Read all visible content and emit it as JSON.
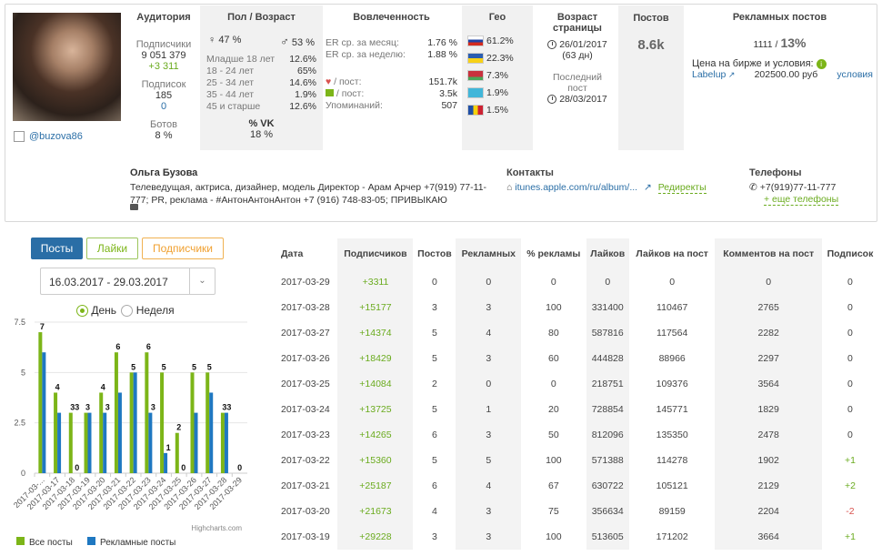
{
  "profile": {
    "handle": "@buzova86",
    "name": "Ольга Бузова",
    "bio": "Телеведущая, актриса, дизайнер, модель Директор - Арам Арчер +7(919) 77-11-777; PR, реклама - #АнтонАнтонАнтон +7 (916) 748-83-05; ПРИВЫКАЮ"
  },
  "audience": {
    "title": "Аудитория",
    "subs_label": "Подписчики",
    "subs_value": "9 051 379",
    "subs_delta": "+3 311",
    "following_label": "Подписок",
    "following_value": "185",
    "following_extra": "0",
    "bots_label": "Ботов",
    "bots_value": "8 %"
  },
  "gender_age": {
    "title": "Пол / Возраст",
    "female": "47 %",
    "male": "53 %",
    "rows": [
      {
        "label": "Младше 18 лет",
        "value": "12.6%"
      },
      {
        "label": "18 - 24 лет",
        "value": "65%"
      },
      {
        "label": "25 - 34 лет",
        "value": "14.6%"
      },
      {
        "label": "35 - 44 лет",
        "value": "1.9%"
      },
      {
        "label": "45 и старше",
        "value": "12.6%"
      }
    ],
    "vk_label": "% VK",
    "vk_value": "18 %"
  },
  "engagement": {
    "title": "Вовлеченность",
    "er_month_label": "ER ср. за месяц:",
    "er_month": "1.76 %",
    "er_week_label": "ER ср. за неделю:",
    "er_week": "1.88 %",
    "likes_label": "/ пост:",
    "likes": "151.7k",
    "comments_label": "/ пост:",
    "comments": "3.5k",
    "mentions_label": "Упоминаний:",
    "mentions": "507"
  },
  "geo": {
    "title": "Гео",
    "rows": [
      {
        "flag": "russia",
        "value": "61.2%"
      },
      {
        "flag": "ukraine",
        "value": "22.3%"
      },
      {
        "flag": "belarus",
        "value": "7.3%"
      },
      {
        "flag": "kazakhstan",
        "value": "1.9%"
      },
      {
        "flag": "moldova",
        "value": "1.5%"
      }
    ]
  },
  "page_age": {
    "title": "Возраст страницы",
    "created": "26/01/2017",
    "created_days": "(63 дн)",
    "last_post_label": "Последний пост",
    "last_post": "28/03/2017"
  },
  "posts": {
    "title": "Постов",
    "value": "8.6k"
  },
  "ads": {
    "title": "Рекламных постов",
    "count": "1111 /",
    "pct": "13%",
    "price_label": "Цена на бирже и условия:",
    "exchange": "Labelup",
    "price": "202500.00 руб",
    "terms": "условия"
  },
  "contacts": {
    "title": "Контакты",
    "link": "itunes.apple.com/ru/album/...",
    "redirects": "Редиректы"
  },
  "phones": {
    "title": "Телефоны",
    "phone": "+7(919)77-11-777",
    "more": "+ еще телефоны"
  },
  "tabs": [
    "Посты",
    "Лайки",
    "Подписчики"
  ],
  "date_range": "16.03.2017 - 29.03.2017",
  "period": {
    "day": "День",
    "week": "Неделя"
  },
  "colors": {
    "green": "#7cb518",
    "blue": "#1f78c1",
    "tab_active": "#2a6ea6"
  },
  "chart_data": {
    "type": "bar",
    "categories": [
      "2017-03-...",
      "2017-03-17",
      "2017-03-18",
      "2017-03-19",
      "2017-03-20",
      "2017-03-21",
      "2017-03-22",
      "2017-03-23",
      "2017-03-24",
      "2017-03-25",
      "2017-03-26",
      "2017-03-27",
      "2017-03-28",
      "2017-03-29"
    ],
    "series": [
      {
        "name": "Все посты",
        "color": "#7cb518",
        "values": [
          7,
          4,
          3,
          3,
          4,
          6,
          5,
          6,
          5,
          2,
          5,
          5,
          3,
          0
        ]
      },
      {
        "name": "Рекламные посты",
        "color": "#1f78c1",
        "values": [
          6,
          3,
          0,
          3,
          3,
          4,
          5,
          3,
          1,
          0,
          3,
          4,
          3,
          0
        ]
      }
    ],
    "data_labels": [
      "7",
      "4",
      "3",
      "3",
      "4",
      "6",
      "5",
      "6",
      "5",
      "2",
      "5",
      "5",
      "3",
      "0"
    ],
    "extra_labels": [
      {
        "index": 2,
        "text": "3"
      },
      {
        "index": 2,
        "text": "0"
      },
      {
        "index": 4,
        "text": "3"
      },
      {
        "index": 7,
        "text": "3"
      },
      {
        "index": 8,
        "text": "1"
      },
      {
        "index": 9,
        "text": "0"
      },
      {
        "index": 12,
        "text": "3"
      }
    ],
    "yticks": [
      "7.5",
      "5",
      "2.5",
      "0"
    ],
    "ylim": [
      0,
      7.5
    ],
    "credit": "Highcharts.com"
  },
  "table": {
    "headers": [
      "Дата",
      "Подписчиков",
      "Постов",
      "Рекламных",
      "% рекламы",
      "Лайков",
      "Лайков на пост",
      "Комментов на пост",
      "Подписок"
    ],
    "rows": [
      [
        "2017-03-29",
        "+3311",
        "0",
        "0",
        "0",
        "0",
        "0",
        "0",
        "0"
      ],
      [
        "2017-03-28",
        "+15177",
        "3",
        "3",
        "100",
        "331400",
        "110467",
        "2765",
        "0"
      ],
      [
        "2017-03-27",
        "+14374",
        "5",
        "4",
        "80",
        "587816",
        "117564",
        "2282",
        "0"
      ],
      [
        "2017-03-26",
        "+18429",
        "5",
        "3",
        "60",
        "444828",
        "88966",
        "2297",
        "0"
      ],
      [
        "2017-03-25",
        "+14084",
        "2",
        "0",
        "0",
        "218751",
        "109376",
        "3564",
        "0"
      ],
      [
        "2017-03-24",
        "+13725",
        "5",
        "1",
        "20",
        "728854",
        "145771",
        "1829",
        "0"
      ],
      [
        "2017-03-23",
        "+14265",
        "6",
        "3",
        "50",
        "812096",
        "135350",
        "2478",
        "0"
      ],
      [
        "2017-03-22",
        "+15360",
        "5",
        "5",
        "100",
        "571388",
        "114278",
        "1902",
        "+1"
      ],
      [
        "2017-03-21",
        "+25187",
        "6",
        "4",
        "67",
        "630722",
        "105121",
        "2129",
        "+2"
      ],
      [
        "2017-03-20",
        "+21673",
        "4",
        "3",
        "75",
        "356634",
        "89159",
        "2204",
        "-2"
      ],
      [
        "2017-03-19",
        "+29228",
        "3",
        "3",
        "100",
        "513605",
        "171202",
        "3664",
        "+1"
      ]
    ]
  }
}
